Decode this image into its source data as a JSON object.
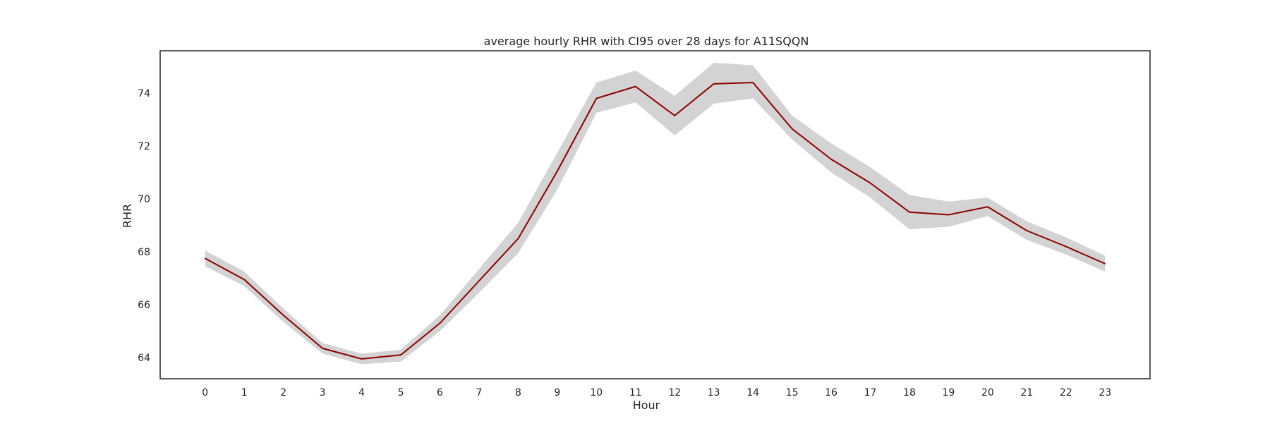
{
  "chart_data": {
    "type": "line",
    "title": "average hourly RHR with CI95 over 28 days for A11SQQN",
    "xlabel": "Hour",
    "ylabel": "RHR",
    "x": [
      0,
      1,
      2,
      3,
      4,
      5,
      6,
      7,
      8,
      9,
      10,
      11,
      12,
      13,
      14,
      15,
      16,
      17,
      18,
      19,
      20,
      21,
      22,
      23
    ],
    "series": [
      {
        "values": [
          67.75,
          66.95,
          65.6,
          64.35,
          63.95,
          64.1,
          65.3,
          66.9,
          68.5,
          71.05,
          73.8,
          74.25,
          73.15,
          74.35,
          74.4,
          72.65,
          71.5,
          70.6,
          69.5,
          69.4,
          69.7,
          68.8,
          68.2,
          67.55
        ],
        "ci_lower": [
          67.45,
          66.7,
          65.35,
          64.15,
          63.75,
          63.85,
          65.0,
          66.45,
          67.95,
          70.35,
          73.25,
          73.65,
          72.4,
          73.6,
          73.8,
          72.25,
          71.0,
          70.05,
          68.85,
          68.95,
          69.35,
          68.45,
          67.9,
          67.25
        ],
        "ci_upper": [
          68.05,
          67.25,
          65.85,
          64.55,
          64.15,
          64.3,
          65.6,
          67.35,
          69.1,
          71.75,
          74.4,
          74.85,
          73.9,
          75.15,
          75.05,
          73.15,
          72.1,
          71.2,
          70.15,
          69.9,
          70.05,
          69.15,
          68.55,
          67.85
        ]
      }
    ],
    "yticks": [
      64,
      66,
      68,
      70,
      72,
      74
    ],
    "xlim": [
      -1.15,
      24.15
    ],
    "ylim": [
      63.2,
      75.6
    ],
    "grid": false,
    "legend": "none",
    "colors": {
      "line": "#8b0000",
      "band": "#d3d3d3",
      "frame": "#262626"
    }
  }
}
